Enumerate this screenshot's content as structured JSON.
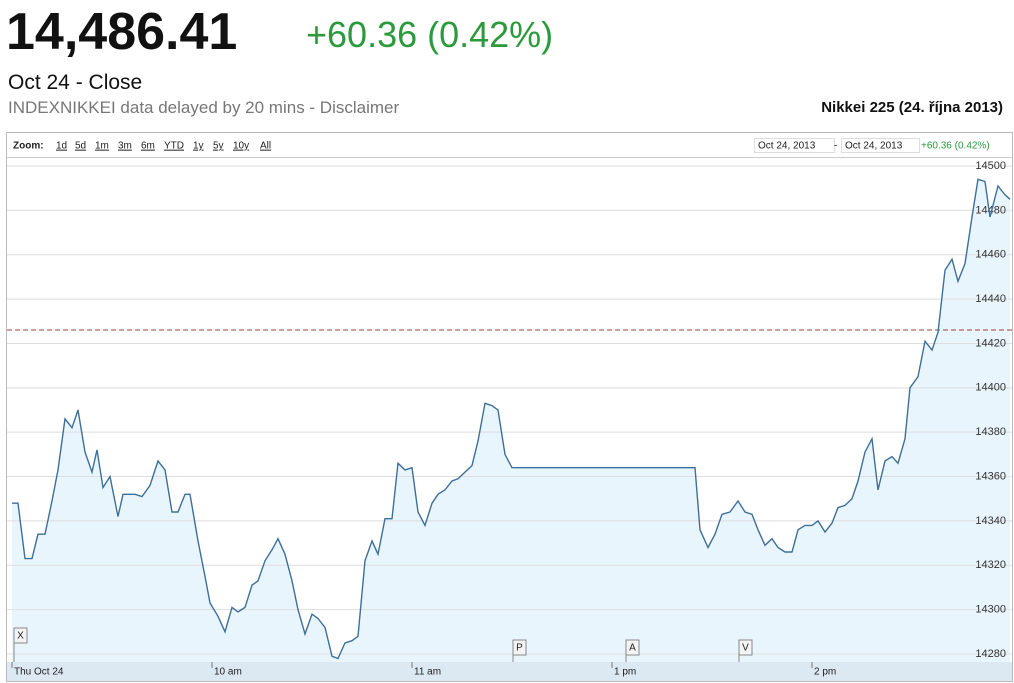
{
  "header": {
    "price": "14,486.41",
    "change": "+60.36 (0.42%)",
    "status": "Oct 24 - Close",
    "source": "INDEXNIKKEI data delayed by 20 mins - Disclaimer",
    "chart_name": "Nikkei 225 (24. října 2013)"
  },
  "toolbar": {
    "zoom_label": "Zoom:",
    "zoom_options": [
      "1d",
      "5d",
      "1m",
      "3m",
      "6m",
      "YTD",
      "1y",
      "5y",
      "10y",
      "All"
    ],
    "range_start": "Oct 24, 2013",
    "range_separator": "-",
    "range_end": "Oct 24, 2013",
    "range_change": "+60.36 (0.42%)"
  },
  "chart_data": {
    "type": "area-line",
    "x": [
      0,
      1.8,
      3.9,
      6,
      7.8,
      9.9,
      12,
      13.8,
      15.9,
      18,
      19.8,
      21.9,
      24,
      25.5,
      27.3,
      29.4,
      31.8,
      33.3,
      36.9,
      39,
      41.4,
      43.8,
      45.9,
      48,
      49.8,
      51.9,
      53.4,
      55.8,
      57.9,
      59.4,
      61.8,
      63.9,
      66,
      67.8,
      69.9,
      72,
      73.8,
      75.9,
      78,
      79.8,
      81.9,
      84,
      85.8,
      87.9,
      90,
      91.8,
      93.9,
      96,
      97.8,
      99.9,
      102,
      103.8,
      105.9,
      108,
      109.8,
      111.9,
      114,
      115.8,
      117.9,
      120,
      121.8,
      123.9,
      126,
      127.8,
      129.9,
      132,
      133.8,
      135.9,
      138,
      139.8,
      141.9,
      144,
      145.8,
      147.9,
      150,
      204.9,
      206.4,
      208.8,
      210.9,
      213,
      215.4,
      217.8,
      219.9,
      222,
      223.8,
      225.9,
      228,
      229.8,
      231.9,
      234,
      235.8,
      237.9,
      240,
      241.8,
      243.9,
      246,
      247.8,
      249.9,
      252,
      253.8,
      255.9,
      258,
      259.8,
      261.9,
      264,
      265.8,
      267.9,
      269.4,
      271.8,
      273.9,
      276,
      277.8,
      279.9,
      282,
      283.8,
      285.9,
      288,
      289.8,
      291.9,
      293.4,
      295.8,
      297.9,
      299.4
    ],
    "values": [
      14348,
      14348,
      14323,
      14323,
      14334,
      14334,
      14349,
      14363,
      14386,
      14382,
      14390,
      14371,
      14362,
      14372,
      14355,
      14360,
      14342,
      14352,
      14352,
      14351,
      14356,
      14367,
      14363,
      14344,
      14344,
      14352,
      14352,
      14331,
      14315,
      14303,
      14297,
      14290,
      14301,
      14299,
      14301,
      14311,
      14313,
      14322,
      14327,
      14332,
      14325,
      14313,
      14300,
      14289,
      14298,
      14296,
      14292,
      14279,
      14278,
      14285,
      14286,
      14288,
      14322,
      14331,
      14325,
      14341,
      14341,
      14366,
      14363,
      14364,
      14344,
      14338,
      14348,
      14352,
      14354,
      14358,
      14359,
      14362,
      14365,
      14376,
      14393,
      14392,
      14390,
      14370,
      14364,
      14364,
      14336,
      14328,
      14334,
      14343,
      14344,
      14349,
      14344,
      14343,
      14336,
      14329,
      14332,
      14328,
      14326,
      14326,
      14336,
      14338,
      14338,
      14340,
      14335,
      14339,
      14346,
      14347,
      14350,
      14358,
      14371,
      14377,
      14354,
      14367,
      14369,
      14366,
      14377,
      14400,
      14405,
      14421,
      14417,
      14425,
      14453,
      14458,
      14448,
      14456,
      14477,
      14494,
      14493,
      14477,
      14491,
      14487,
      14485
    ],
    "color": "#3d6f99",
    "fill_color": "#e9f5fc",
    "previous_close": 14426.05,
    "previous_close_color": "#a33a3a",
    "xlim": [
      0,
      300
    ],
    "xticks": [
      {
        "value": 0,
        "label": "Thu Oct 24"
      },
      {
        "value": 60,
        "label": "10 am"
      },
      {
        "value": 120,
        "label": "11 am"
      },
      {
        "value": 180,
        "label": "1 pm"
      },
      {
        "value": 240,
        "label": "2 pm"
      }
    ],
    "ylim": [
      14276.4,
      14503.6
    ],
    "yticks": [
      14280,
      14300,
      14320,
      14340,
      14360,
      14380,
      14400,
      14420,
      14440,
      14460,
      14480,
      14500
    ],
    "grid": true,
    "flags": [
      "X",
      "P",
      "A",
      "V"
    ]
  }
}
